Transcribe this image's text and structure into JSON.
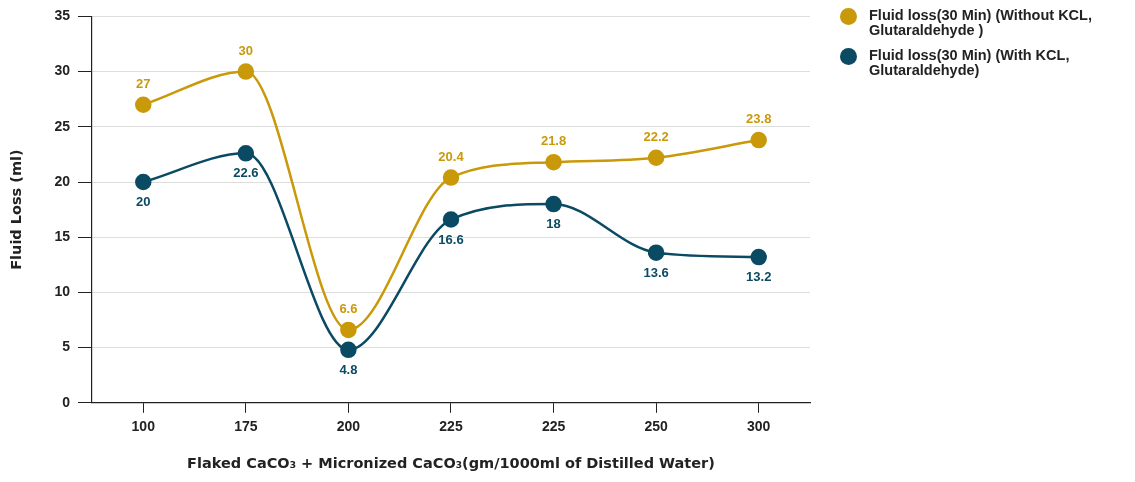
{
  "chart_data": {
    "type": "line",
    "xlabel": "Flaked CaCO₃ + Micronized CaCO₃(gm/1000ml of Distilled Water)",
    "ylabel": "Fluid Loss (ml)",
    "categories": [
      "100",
      "175",
      "200",
      "225",
      "225",
      "250",
      "300"
    ],
    "series": [
      {
        "name": "Fluid loss(30 Min) (Without KCL, Glutaraldehyde )",
        "color": "#c9990a",
        "values": [
          27,
          30,
          6.6,
          20.4,
          21.8,
          22.2,
          23.8
        ]
      },
      {
        "name": "Fluid loss(30 Min) (With KCL, Glutaraldehyde)",
        "color": "#0b4a63",
        "values": [
          20,
          22.6,
          4.8,
          16.6,
          18,
          13.6,
          13.2
        ]
      }
    ],
    "ylim": [
      0,
      35
    ],
    "yticks": [
      0,
      5,
      10,
      15,
      20,
      25,
      30,
      35
    ],
    "grid": "y",
    "legend": "top right",
    "marker": "circle",
    "line_style": "solid",
    "data_labels": true
  }
}
